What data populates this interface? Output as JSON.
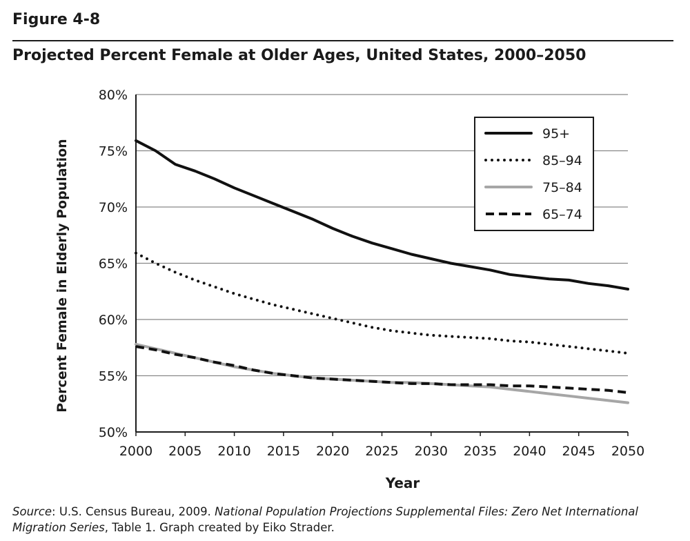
{
  "figure": {
    "label": "Figure 4-8",
    "title": "Projected Percent Female at Older Ages, United States, 2000–2050"
  },
  "source": {
    "lead": "Source",
    "text1": ": U.S. Census Bureau, 2009. ",
    "italic": "National Population Projections Supplemental Files: Zero Net International Migration Series",
    "text2": ", Table 1. Graph created by Eiko Strader."
  },
  "chart_data": {
    "type": "line",
    "title": "Projected Percent Female at Older Ages, United States, 2000–2050",
    "xlabel": "Year",
    "ylabel": "Percent Female in Elderly Population",
    "xlim": [
      2000,
      2050
    ],
    "ylim": [
      50,
      80
    ],
    "x_ticks": [
      2000,
      2005,
      2010,
      2015,
      2020,
      2025,
      2030,
      2035,
      2040,
      2045,
      2050
    ],
    "y_ticks": [
      "50%",
      "55%",
      "60%",
      "65%",
      "70%",
      "75%",
      "80%"
    ],
    "y_tick_values": [
      50,
      55,
      60,
      65,
      70,
      75,
      80
    ],
    "grid": "horizontal",
    "legend_position": "top-right",
    "x": [
      2000,
      2002,
      2004,
      2006,
      2008,
      2010,
      2012,
      2014,
      2016,
      2018,
      2020,
      2022,
      2024,
      2026,
      2028,
      2030,
      2032,
      2034,
      2036,
      2038,
      2040,
      2042,
      2044,
      2046,
      2048,
      2050
    ],
    "series": [
      {
        "name": "95+",
        "color": "#111111",
        "style": "solid",
        "values": [
          75.9,
          75.0,
          73.8,
          73.2,
          72.5,
          71.7,
          71.0,
          70.3,
          69.6,
          68.9,
          68.1,
          67.4,
          66.8,
          66.3,
          65.8,
          65.4,
          65.0,
          64.7,
          64.4,
          64.0,
          63.8,
          63.6,
          63.5,
          63.2,
          63.0,
          62.7
        ]
      },
      {
        "name": "85–94",
        "color": "#111111",
        "style": "dotted",
        "values": [
          65.9,
          65.0,
          64.2,
          63.5,
          62.9,
          62.3,
          61.8,
          61.3,
          60.9,
          60.5,
          60.1,
          59.7,
          59.3,
          59.0,
          58.8,
          58.6,
          58.5,
          58.4,
          58.3,
          58.1,
          58.0,
          57.8,
          57.6,
          57.4,
          57.2,
          57.0
        ]
      },
      {
        "name": "75–84",
        "color": "#a6a6a6",
        "style": "solid",
        "values": [
          57.8,
          57.4,
          57.0,
          56.6,
          56.2,
          55.8,
          55.5,
          55.2,
          55.0,
          54.8,
          54.7,
          54.6,
          54.5,
          54.4,
          54.4,
          54.3,
          54.2,
          54.1,
          54.0,
          53.8,
          53.6,
          53.4,
          53.2,
          53.0,
          52.8,
          52.6
        ]
      },
      {
        "name": "65–74",
        "color": "#111111",
        "style": "dashed",
        "values": [
          57.6,
          57.3,
          56.9,
          56.6,
          56.2,
          55.9,
          55.5,
          55.2,
          55.0,
          54.8,
          54.7,
          54.6,
          54.5,
          54.4,
          54.3,
          54.3,
          54.2,
          54.2,
          54.2,
          54.1,
          54.1,
          54.0,
          53.9,
          53.8,
          53.7,
          53.5
        ]
      }
    ]
  }
}
